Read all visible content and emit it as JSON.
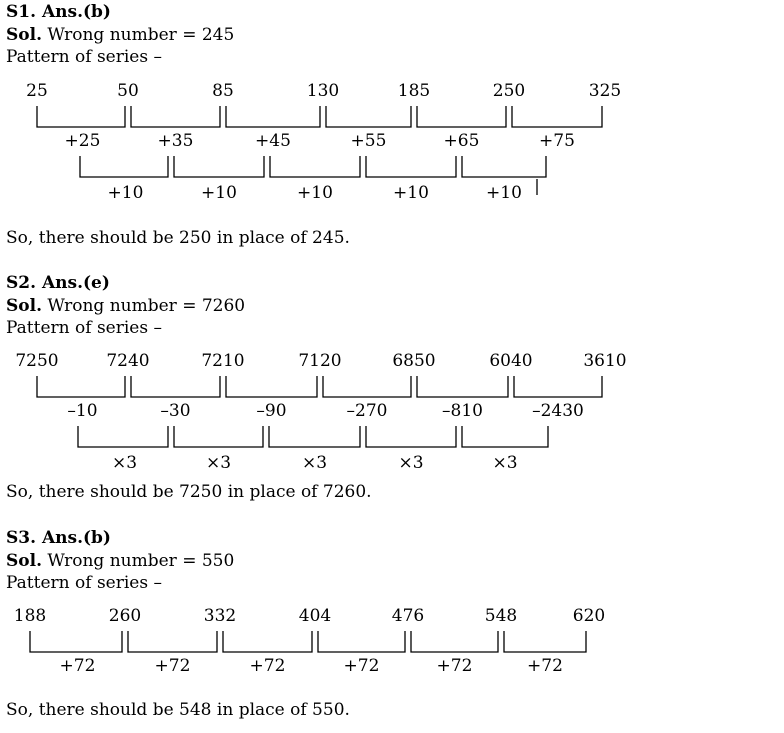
{
  "sections": [
    {
      "heading": "S1. Ans.(b)",
      "sol_label": "Sol.",
      "sol_text": " Wrong number = 245",
      "pattern_label": "Pattern of series –",
      "numbers": [
        "25",
        "50",
        "85",
        "130",
        "185",
        "250",
        "325"
      ],
      "diffs": [
        "+25",
        "+35",
        "+45",
        "+55",
        "+65",
        "+75"
      ],
      "second_diffs": [
        "+10",
        "+10",
        "+10",
        "+10",
        "+10"
      ],
      "conclusion": "So, there should be 250 in place of 245."
    },
    {
      "heading": "S2. Ans.(e)",
      "sol_label": "Sol.",
      "sol_text": " Wrong number = 7260",
      "pattern_label": "Pattern of series –",
      "numbers": [
        "7250",
        "7240",
        "7210",
        "7120",
        "6850",
        "6040",
        "3610"
      ],
      "diffs": [
        "–10",
        "–30",
        "–90",
        "–270",
        "–810",
        "–2430"
      ],
      "second_diffs": [
        "×3",
        "×3",
        "×3",
        "×3",
        "×3"
      ],
      "conclusion": "So, there should be 7250 in place of 7260."
    },
    {
      "heading": "S3. Ans.(b)",
      "sol_label": "Sol.",
      "sol_text": " Wrong number = 550",
      "pattern_label": "Pattern of series –",
      "numbers": [
        "188",
        "260",
        "332",
        "404",
        "476",
        "548",
        "620"
      ],
      "diffs": [
        "+72",
        "+72",
        "+72",
        "+72",
        "+72",
        "+72"
      ],
      "second_diffs": [],
      "conclusion": "So, there should be 548 in place of 550."
    }
  ]
}
